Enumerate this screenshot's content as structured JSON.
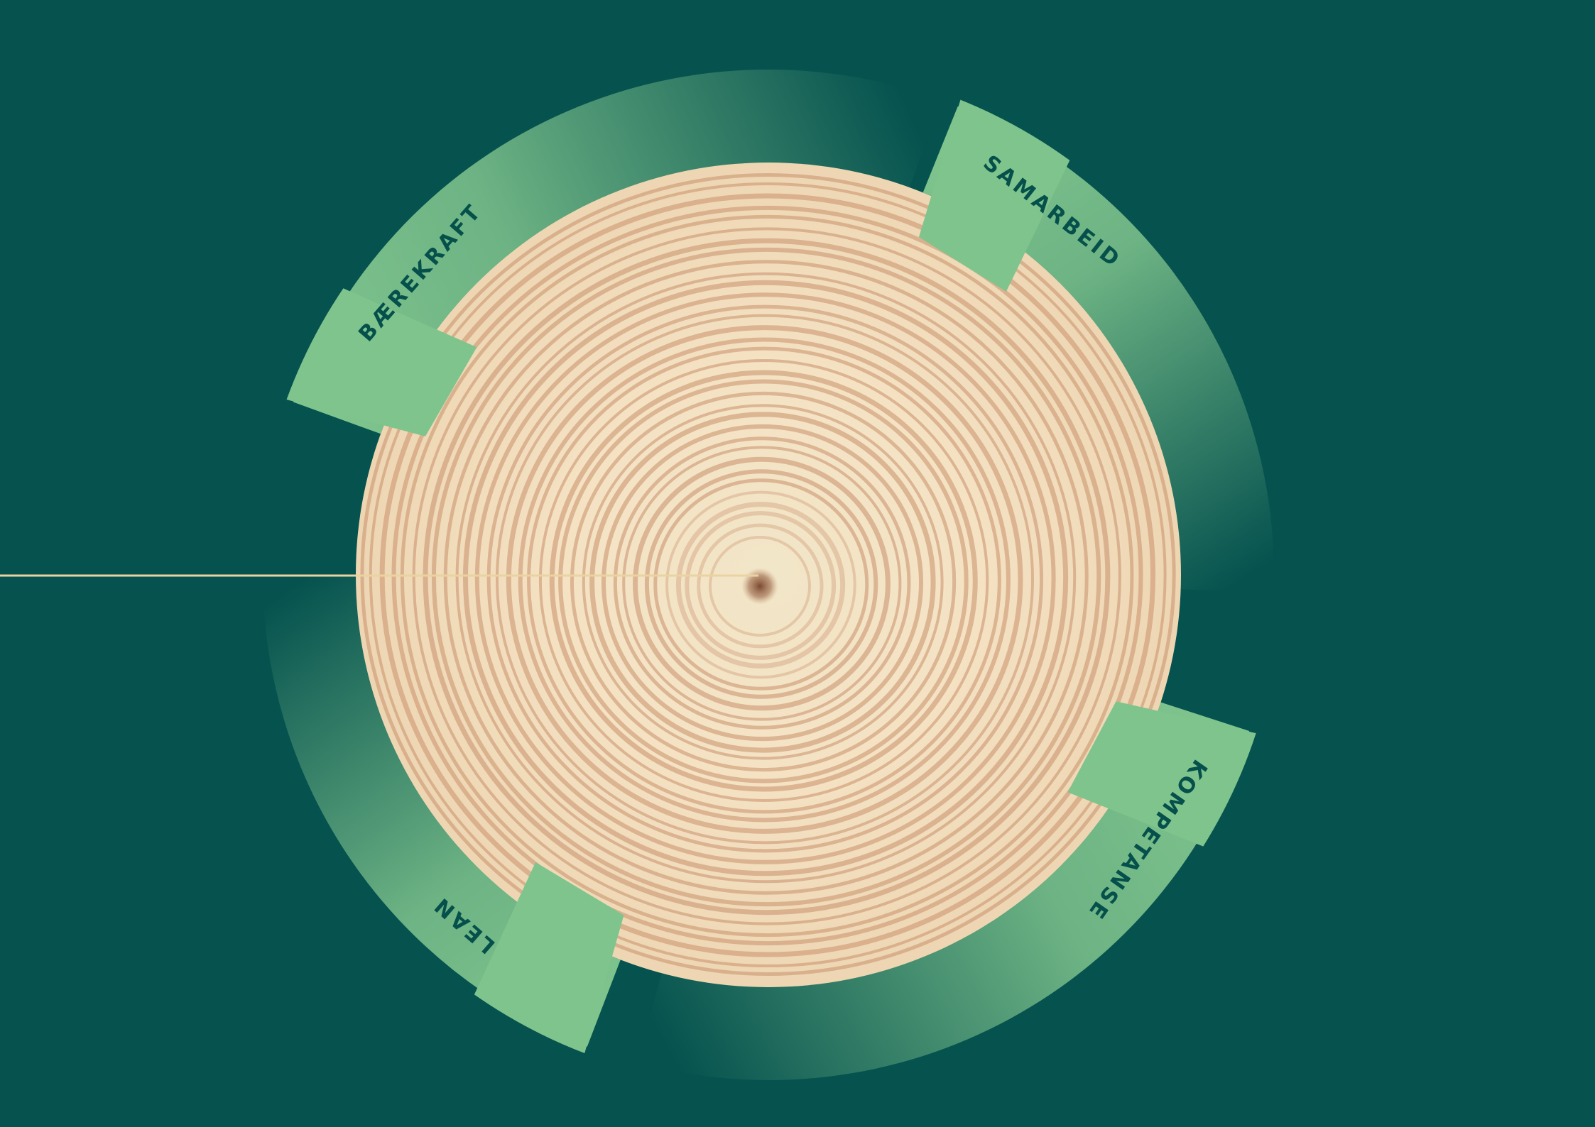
{
  "colors": {
    "background": "#05524f",
    "segment_light": "#7fc48d",
    "label_text": "#06504c",
    "pointer_line": "#e9d3a0",
    "wood_light": "#f4e3c6",
    "wood_ring": "#c9906c",
    "pith": "#8c5a3c"
  },
  "segments": [
    {
      "id": "baerekraft",
      "label": "BÆREKRAFT"
    },
    {
      "id": "samarbeid",
      "label": "SAMARBEID"
    },
    {
      "id": "kompetanse",
      "label": "KOMPETANSE"
    },
    {
      "id": "lean",
      "label": "LEAN"
    }
  ]
}
